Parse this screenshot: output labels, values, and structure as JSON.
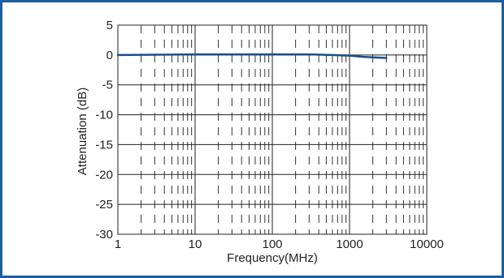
{
  "chart_data": {
    "type": "line",
    "xscale": "log",
    "xlim": [
      1,
      10000
    ],
    "ylim": [
      -30,
      5
    ],
    "xticks": [
      1,
      10,
      100,
      1000,
      10000
    ],
    "xtick_labels": [
      "1",
      "10",
      "100",
      "1000",
      "10000"
    ],
    "yticks": [
      5,
      0,
      -5,
      -10,
      -15,
      -20,
      -25,
      -30
    ],
    "ytick_labels": [
      "5",
      "0",
      "-5",
      "-10",
      "-15",
      "-20",
      "-25",
      "-30"
    ],
    "xlabel": "Frequency(MHz)",
    "ylabel": "Attenuation (dB)",
    "grid": true,
    "series": [
      {
        "x": [
          1,
          10,
          100,
          300,
          600,
          1000,
          1500,
          2000,
          3000
        ],
        "y": [
          0,
          0.1,
          0.1,
          0.1,
          0.0,
          -0.1,
          -0.3,
          -0.4,
          -0.5
        ]
      }
    ],
    "colors": {
      "line": "#1a4f8a",
      "frame": "#1a5fa0"
    }
  }
}
